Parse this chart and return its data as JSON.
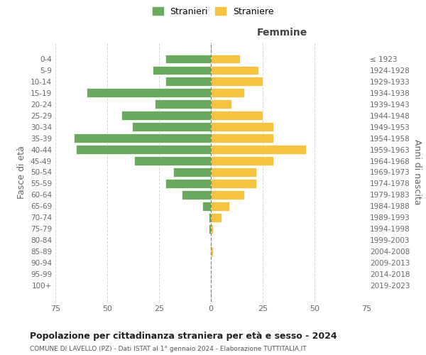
{
  "age_groups": [
    "0-4",
    "5-9",
    "10-14",
    "15-19",
    "20-24",
    "25-29",
    "30-34",
    "35-39",
    "40-44",
    "45-49",
    "50-54",
    "55-59",
    "60-64",
    "65-69",
    "70-74",
    "75-79",
    "80-84",
    "85-89",
    "90-94",
    "95-99",
    "100+"
  ],
  "birth_years": [
    "2019-2023",
    "2014-2018",
    "2009-2013",
    "2004-2008",
    "1999-2003",
    "1994-1998",
    "1989-1993",
    "1984-1988",
    "1979-1983",
    "1974-1978",
    "1969-1973",
    "1964-1968",
    "1959-1963",
    "1954-1958",
    "1949-1953",
    "1944-1948",
    "1939-1943",
    "1934-1938",
    "1929-1933",
    "1924-1928",
    "≤ 1923"
  ],
  "males": [
    22,
    28,
    22,
    60,
    27,
    43,
    38,
    66,
    65,
    37,
    18,
    22,
    14,
    4,
    1,
    1,
    0,
    0,
    0,
    0,
    0
  ],
  "females": [
    14,
    23,
    25,
    16,
    10,
    25,
    30,
    30,
    46,
    30,
    22,
    22,
    16,
    9,
    5,
    1,
    0,
    1,
    0,
    0,
    0
  ],
  "male_color": "#6aaa5e",
  "female_color": "#f5c242",
  "background_color": "#ffffff",
  "grid_color": "#cccccc",
  "title": "Popolazione per cittadinanza straniera per età e sesso - 2024",
  "subtitle": "COMUNE DI LAVELLO (PZ) - Dati ISTAT al 1° gennaio 2024 - Elaborazione TUTTITALIA.IT",
  "right_label": "Femmine",
  "y_left_label": "Fasce di età",
  "y_right_label": "Anni di nascita",
  "legend_male": "Stranieri",
  "legend_female": "Straniere",
  "xlim": 75
}
